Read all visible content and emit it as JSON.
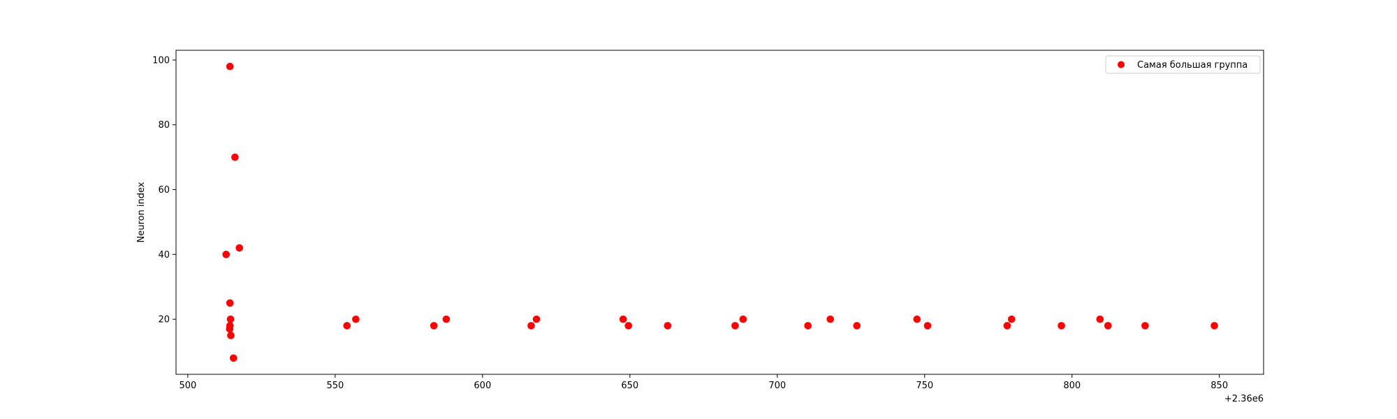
{
  "chart_data": {
    "type": "scatter",
    "title": "",
    "xlabel": "",
    "ylabel": "Neuron index",
    "x_offset_label": "+2.36e6",
    "xlim": [
      496,
      865
    ],
    "ylim": [
      3,
      103
    ],
    "x_ticks": [
      500,
      550,
      600,
      650,
      700,
      750,
      800,
      850
    ],
    "x_tick_labels": [
      "500",
      "550",
      "600",
      "650",
      "700",
      "750",
      "800",
      "850"
    ],
    "y_ticks": [
      20,
      40,
      60,
      80,
      100
    ],
    "y_tick_labels": [
      "20",
      "40",
      "60",
      "80",
      "100"
    ],
    "grid": false,
    "legend": {
      "position": "top-right",
      "entries": [
        "Самая большая группа"
      ]
    },
    "series": [
      {
        "name": "Самая большая группа",
        "color": "#ff0000",
        "marker": "circle",
        "points": [
          {
            "x": 513.0,
            "y": 40
          },
          {
            "x": 514.3,
            "y": 98
          },
          {
            "x": 514.3,
            "y": 25
          },
          {
            "x": 514.5,
            "y": 20
          },
          {
            "x": 514.3,
            "y": 18
          },
          {
            "x": 514.2,
            "y": 17
          },
          {
            "x": 514.6,
            "y": 15
          },
          {
            "x": 515.5,
            "y": 8
          },
          {
            "x": 516.0,
            "y": 70
          },
          {
            "x": 517.5,
            "y": 42
          },
          {
            "x": 554.0,
            "y": 18
          },
          {
            "x": 557.0,
            "y": 20
          },
          {
            "x": 583.5,
            "y": 18
          },
          {
            "x": 587.7,
            "y": 20
          },
          {
            "x": 616.5,
            "y": 18
          },
          {
            "x": 618.3,
            "y": 20
          },
          {
            "x": 647.7,
            "y": 20
          },
          {
            "x": 649.5,
            "y": 18
          },
          {
            "x": 662.8,
            "y": 18
          },
          {
            "x": 685.7,
            "y": 18
          },
          {
            "x": 688.4,
            "y": 20
          },
          {
            "x": 710.4,
            "y": 18
          },
          {
            "x": 718.0,
            "y": 20
          },
          {
            "x": 727.0,
            "y": 18
          },
          {
            "x": 747.4,
            "y": 20
          },
          {
            "x": 751.0,
            "y": 18
          },
          {
            "x": 778.0,
            "y": 18
          },
          {
            "x": 779.5,
            "y": 20
          },
          {
            "x": 796.4,
            "y": 18
          },
          {
            "x": 809.5,
            "y": 20
          },
          {
            "x": 812.2,
            "y": 18
          },
          {
            "x": 824.8,
            "y": 18
          },
          {
            "x": 848.3,
            "y": 18
          }
        ]
      }
    ]
  }
}
